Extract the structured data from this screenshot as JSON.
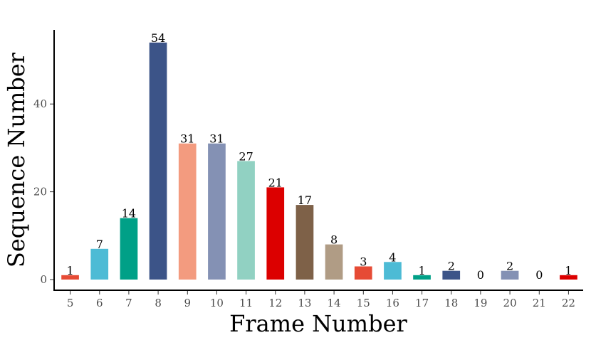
{
  "chart_data": {
    "type": "bar",
    "title": "",
    "xlabel": "Frame Number",
    "ylabel": "Sequence Number",
    "categories": [
      "5",
      "6",
      "7",
      "8",
      "9",
      "10",
      "11",
      "12",
      "13",
      "14",
      "15",
      "16",
      "17",
      "18",
      "19",
      "20",
      "21",
      "22"
    ],
    "values": [
      1,
      7,
      14,
      54,
      31,
      31,
      27,
      21,
      17,
      8,
      3,
      4,
      1,
      2,
      0,
      2,
      0,
      1
    ],
    "data_labels": [
      "1",
      "7",
      "14",
      "54",
      "31",
      "31",
      "27",
      "21",
      "17",
      "8",
      "3",
      "4",
      "1",
      "2",
      "0",
      "2",
      "0",
      "1"
    ],
    "colors": [
      "#E64B35",
      "#4DBBD5",
      "#00A087",
      "#3C5488",
      "#F39B7F",
      "#8491B4",
      "#91D1C2",
      "#DC0000",
      "#7E6148",
      "#B09C85",
      "#E64B35",
      "#4DBBD5",
      "#00A087",
      "#3C5488",
      "#F39B7F",
      "#8491B4",
      "#91D1C2",
      "#DC0000"
    ],
    "yticks": [
      0,
      20,
      40
    ],
    "ytick_labels": [
      "0",
      "20",
      "40"
    ],
    "ylim": [
      0,
      56
    ],
    "grid": false,
    "legend": "none"
  }
}
